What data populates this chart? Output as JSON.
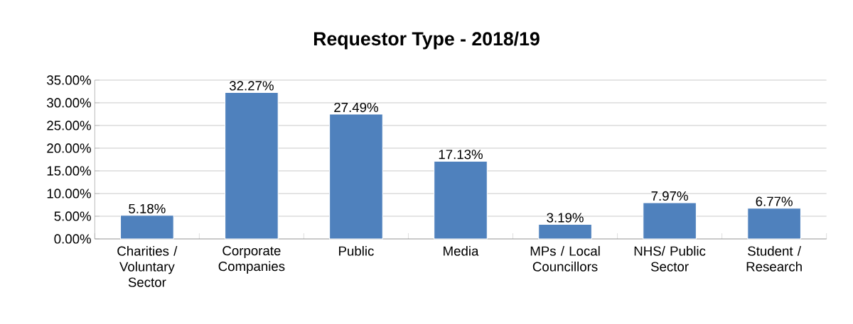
{
  "chart_data": {
    "type": "bar",
    "title": "Requestor Type - 2018/19",
    "categories": [
      "Charities / Voluntary Sector",
      "Corporate Companies",
      "Public",
      "Media",
      "MPs / Local Councillors",
      "NHS/ Public Sector",
      "Student / Research"
    ],
    "values": [
      5.18,
      32.27,
      27.49,
      17.13,
      3.19,
      7.97,
      6.77
    ],
    "value_labels": [
      "5.18%",
      "32.27%",
      "27.49%",
      "17.13%",
      "3.19%",
      "7.97%",
      "6.77%"
    ],
    "color": "#4f81bd",
    "ylim": [
      0,
      35
    ],
    "yticks": [
      {
        "value": 0,
        "label": "0.00%"
      },
      {
        "value": 5,
        "label": "5.00%"
      },
      {
        "value": 10,
        "label": "10.00%"
      },
      {
        "value": 15,
        "label": "15.00%"
      },
      {
        "value": 20,
        "label": "20.00%"
      },
      {
        "value": 25,
        "label": "25.00%"
      },
      {
        "value": 30,
        "label": "30.00%"
      },
      {
        "value": 35,
        "label": "35.00%"
      }
    ],
    "grid": "y"
  }
}
